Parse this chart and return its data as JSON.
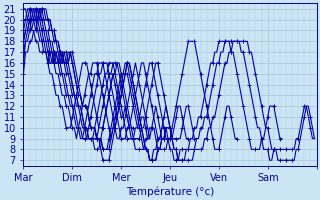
{
  "xlabel": "Température (°c)",
  "xlim": [
    0,
    144
  ],
  "ylim": [
    6.5,
    21.5
  ],
  "yticks": [
    7,
    8,
    9,
    10,
    11,
    12,
    13,
    14,
    15,
    16,
    17,
    18,
    19,
    20,
    21
  ],
  "day_ticks": [
    0,
    24,
    48,
    72,
    96,
    120,
    144
  ],
  "day_labels": [
    "Mar",
    "Dim",
    "Mer",
    "Jeu",
    "Ven",
    "Sam",
    ""
  ],
  "bg_color": "#cce5f5",
  "grid_color": "#aaccdd",
  "line_color": "#0000aa",
  "linewidth": 0.8,
  "markersize": 3,
  "series": [
    [
      15,
      17,
      17,
      18,
      18,
      19,
      19,
      20,
      20,
      21,
      21,
      21,
      20,
      20,
      19,
      19,
      18,
      18,
      17,
      17,
      16,
      16,
      16,
      17,
      17,
      16,
      15,
      14,
      13,
      12,
      12,
      12,
      11,
      10,
      10,
      10,
      9,
      9,
      8,
      7,
      7,
      7,
      7,
      8,
      9,
      10,
      11,
      12,
      13,
      14,
      15,
      16,
      16,
      15,
      14,
      13,
      12,
      11,
      10,
      9,
      8,
      8,
      7,
      7,
      7,
      7,
      8,
      8,
      9,
      9,
      10,
      10,
      10,
      9,
      8,
      8,
      7,
      7,
      7,
      7,
      7,
      7,
      7,
      7,
      8,
      8,
      8,
      8,
      8,
      9,
      9,
      10,
      10,
      11,
      11,
      12,
      13,
      14,
      15,
      16,
      16,
      17,
      17,
      18,
      18,
      18,
      18,
      18,
      18,
      18,
      18,
      17,
      17,
      16,
      15,
      14,
      13,
      12,
      11,
      10,
      10,
      9,
      8,
      8,
      8,
      7,
      7,
      7,
      7,
      7,
      7,
      7,
      7,
      7,
      8,
      8,
      9,
      10,
      11,
      12,
      12,
      11,
      10,
      9
    ],
    [
      16,
      18,
      18,
      19,
      19,
      20,
      20,
      20,
      21,
      21,
      21,
      20,
      20,
      20,
      19,
      19,
      18,
      18,
      17,
      17,
      16,
      16,
      16,
      17,
      16,
      15,
      14,
      13,
      13,
      12,
      12,
      12,
      11,
      10,
      10,
      10,
      9,
      9,
      9,
      8,
      8,
      8,
      8,
      9,
      10,
      11,
      12,
      13,
      14,
      15,
      15,
      16,
      16,
      15,
      14,
      13,
      12,
      11,
      10,
      9,
      8,
      8,
      7,
      7,
      7,
      7,
      8,
      8,
      9,
      9,
      10,
      10,
      10,
      9,
      8,
      8,
      7,
      7,
      7,
      7,
      8,
      8,
      8,
      8,
      8,
      9,
      9,
      10,
      10,
      11,
      11,
      12,
      13,
      14,
      15,
      16,
      16,
      17,
      17,
      18,
      18,
      18,
      18,
      18,
      18,
      18,
      18,
      17,
      17,
      16,
      15,
      14,
      13,
      12,
      11,
      10,
      10,
      9,
      8,
      8,
      8,
      7,
      7,
      8,
      8,
      8,
      8,
      8,
      8,
      8,
      8,
      8,
      8,
      8,
      9,
      9,
      10,
      11,
      12,
      12,
      11,
      10,
      9,
      9
    ],
    [
      17,
      18,
      19,
      19,
      20,
      20,
      20,
      20,
      21,
      21,
      20,
      20,
      20,
      19,
      19,
      18,
      18,
      17,
      17,
      16,
      16,
      16,
      17,
      17,
      16,
      15,
      14,
      13,
      13,
      12,
      12,
      12,
      11,
      10,
      10,
      10,
      9,
      9,
      9,
      8,
      8,
      8,
      9,
      10,
      11,
      12,
      13,
      14,
      15,
      15,
      16,
      16,
      15,
      14,
      13,
      12,
      11,
      10,
      9,
      8,
      8,
      8,
      7,
      7,
      8,
      8,
      9,
      9,
      10,
      10,
      10,
      9,
      8,
      8,
      7,
      7,
      7,
      8,
      8,
      8,
      8,
      8,
      9,
      9,
      10,
      10,
      11,
      11,
      12,
      13,
      14,
      15,
      16,
      16,
      17,
      17,
      18,
      18,
      18,
      18,
      18,
      18,
      17,
      17,
      16,
      15,
      14,
      13,
      12,
      11,
      10,
      9,
      8,
      8,
      8,
      8,
      8,
      9,
      9,
      10,
      11,
      12,
      12,
      12,
      11,
      10,
      9,
      9
    ],
    [
      18,
      19,
      19,
      20,
      20,
      20,
      20,
      21,
      21,
      20,
      20,
      19,
      19,
      18,
      18,
      17,
      17,
      16,
      16,
      16,
      17,
      17,
      16,
      15,
      14,
      13,
      13,
      12,
      12,
      11,
      10,
      10,
      9,
      9,
      9,
      8,
      8,
      8,
      9,
      10,
      11,
      12,
      13,
      14,
      15,
      15,
      16,
      16,
      15,
      14,
      13,
      12,
      11,
      10,
      9,
      8,
      8,
      8,
      8,
      8,
      9,
      9,
      10,
      10,
      10,
      9,
      8,
      8,
      8,
      8,
      8,
      9,
      9,
      10,
      11,
      12,
      13,
      14,
      15,
      16,
      17,
      18,
      18,
      18,
      18,
      17,
      16,
      15,
      14,
      13,
      12,
      11,
      10,
      9,
      8,
      8,
      8,
      9,
      10,
      11,
      12,
      12,
      11,
      10,
      9,
      9
    ],
    [
      18,
      19,
      19,
      20,
      20,
      20,
      21,
      21,
      20,
      20,
      19,
      19,
      18,
      18,
      17,
      17,
      16,
      16,
      16,
      17,
      17,
      16,
      15,
      15,
      14,
      13,
      13,
      12,
      12,
      11,
      10,
      10,
      9,
      9,
      9,
      9,
      9,
      10,
      11,
      12,
      13,
      14,
      15,
      15,
      16,
      16,
      16,
      15,
      14,
      13,
      12,
      11,
      10,
      9,
      9,
      9,
      9,
      9,
      10,
      10,
      11,
      12,
      13,
      14,
      15,
      16,
      16,
      15,
      14,
      13,
      12,
      11,
      10,
      9,
      9,
      9,
      9,
      9,
      10,
      11,
      12,
      12,
      11,
      10,
      9,
      9
    ],
    [
      19,
      19,
      20,
      20,
      20,
      21,
      21,
      20,
      20,
      19,
      19,
      18,
      18,
      17,
      17,
      16,
      16,
      16,
      17,
      17,
      16,
      15,
      15,
      14,
      13,
      13,
      12,
      12,
      11,
      10,
      10,
      9,
      9,
      9,
      9,
      10,
      11,
      12,
      13,
      14,
      15,
      15,
      16,
      16,
      16,
      15,
      14,
      13,
      12,
      11,
      10,
      9,
      9,
      9,
      9,
      10,
      10,
      11,
      12,
      13,
      14,
      15,
      16,
      16,
      15,
      14,
      13,
      12,
      11,
      10,
      9,
      9,
      9,
      9,
      10,
      11,
      12,
      12,
      11,
      10,
      9,
      9
    ],
    [
      19,
      20,
      20,
      20,
      21,
      21,
      20,
      20,
      19,
      19,
      18,
      18,
      17,
      17,
      16,
      16,
      17,
      17,
      16,
      15,
      15,
      14,
      13,
      13,
      12,
      12,
      11,
      10,
      10,
      9,
      9,
      9,
      10,
      11,
      12,
      13,
      14,
      15,
      15,
      16,
      16,
      16,
      15,
      14,
      13,
      12,
      11,
      10,
      9,
      9,
      9,
      10,
      10,
      11,
      12,
      13,
      14,
      15,
      16,
      16,
      15,
      14,
      13,
      12,
      11,
      10,
      9,
      9,
      10,
      11,
      12,
      11,
      10,
      9,
      9
    ],
    [
      20,
      20,
      20,
      21,
      21,
      20,
      20,
      19,
      19,
      18,
      18,
      17,
      17,
      16,
      16,
      17,
      17,
      16,
      15,
      15,
      14,
      13,
      13,
      12,
      12,
      11,
      10,
      10,
      9,
      9,
      10,
      11,
      12,
      13,
      14,
      15,
      15,
      16,
      16,
      16,
      15,
      14,
      13,
      12,
      11,
      10,
      9,
      9,
      10,
      10,
      11,
      12,
      13,
      14,
      15,
      16,
      15,
      14,
      13,
      12,
      11,
      10,
      9,
      10,
      11,
      12,
      11,
      10,
      9,
      9
    ],
    [
      20,
      20,
      21,
      21,
      20,
      20,
      19,
      19,
      18,
      18,
      17,
      17,
      16,
      17,
      17,
      16,
      15,
      15,
      14,
      13,
      13,
      12,
      12,
      11,
      10,
      10,
      9,
      10,
      11,
      12,
      13,
      14,
      15,
      15,
      16,
      16,
      16,
      15,
      14,
      13,
      12,
      11,
      10,
      9,
      10,
      10,
      11,
      12,
      13,
      14,
      15,
      15,
      14,
      13,
      12,
      11,
      10,
      10,
      11,
      11,
      10,
      9,
      9
    ],
    [
      21,
      21,
      20,
      20,
      19,
      19,
      18,
      18,
      17,
      17,
      17,
      17,
      16,
      15,
      15,
      14,
      13,
      13,
      12,
      12,
      11,
      10,
      10,
      10,
      11,
      12,
      13,
      14,
      15,
      16,
      16,
      16,
      15,
      14,
      13,
      12,
      11,
      10,
      10,
      10,
      11,
      12,
      13,
      14,
      15,
      14,
      13,
      12,
      11,
      11,
      12,
      11,
      10,
      10,
      10
    ]
  ]
}
